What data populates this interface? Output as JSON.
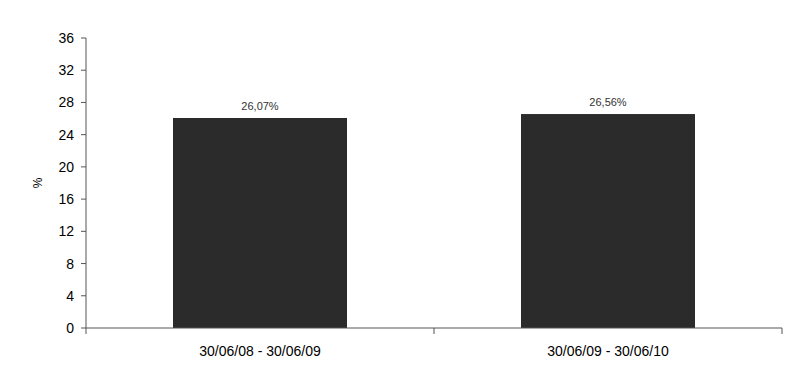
{
  "chart_data": {
    "type": "bar",
    "y_label": "%",
    "categories": [
      "30/06/08 - 30/06/09",
      "30/06/09 - 30/06/10"
    ],
    "values": [
      26.07,
      26.56
    ],
    "value_labels": [
      "26,07%",
      "26,56%"
    ],
    "data_labels": true,
    "color": "#2b2b2b",
    "ylim": [
      0,
      36
    ],
    "yticks": [
      0,
      4,
      8,
      12,
      16,
      20,
      24,
      28,
      32,
      36
    ],
    "grid": false
  }
}
